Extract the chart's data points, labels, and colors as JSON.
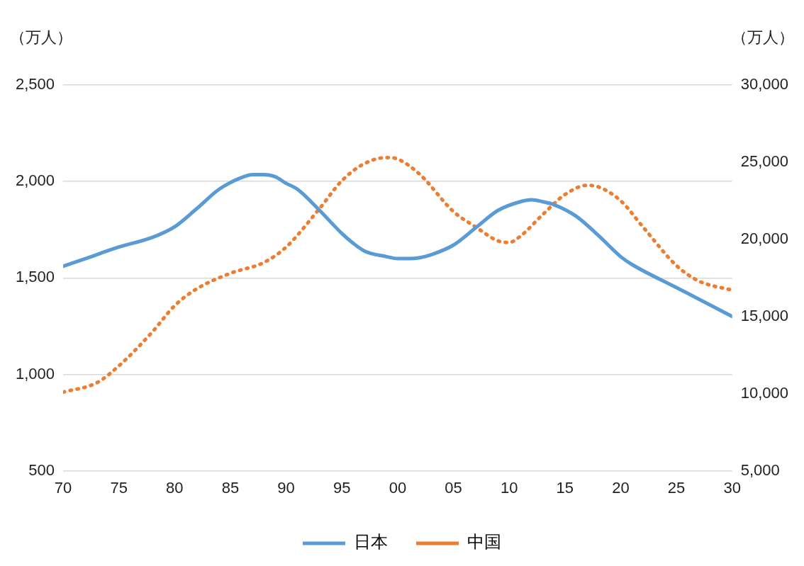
{
  "chart_data": {
    "type": "line",
    "ylabel": "（万人）",
    "y2label": "（万人）",
    "xlim": [
      1970,
      2030
    ],
    "xticks": [
      {
        "value": 1970,
        "label": "70"
      },
      {
        "value": 1975,
        "label": "75"
      },
      {
        "value": 1980,
        "label": "80"
      },
      {
        "value": 1985,
        "label": "85"
      },
      {
        "value": 1990,
        "label": "90"
      },
      {
        "value": 1995,
        "label": "95"
      },
      {
        "value": 2000,
        "label": "00"
      },
      {
        "value": 2005,
        "label": "05"
      },
      {
        "value": 2010,
        "label": "10"
      },
      {
        "value": 2015,
        "label": "15"
      },
      {
        "value": 2020,
        "label": "20"
      },
      {
        "value": 2025,
        "label": "25"
      },
      {
        "value": 2030,
        "label": "30"
      }
    ],
    "ylim": [
      500,
      2500
    ],
    "yticks": [
      {
        "value": 500,
        "label": "500"
      },
      {
        "value": 1000,
        "label": "1,000"
      },
      {
        "value": 1500,
        "label": "1,500"
      },
      {
        "value": 2000,
        "label": "2,000"
      },
      {
        "value": 2500,
        "label": "2,500"
      }
    ],
    "y2lim": [
      5000,
      30000
    ],
    "y2ticks": [
      {
        "value": 5000,
        "label": "5,000"
      },
      {
        "value": 10000,
        "label": "10,000"
      },
      {
        "value": 15000,
        "label": "15,000"
      },
      {
        "value": 20000,
        "label": "20,000"
      },
      {
        "value": 25000,
        "label": "25,000"
      },
      {
        "value": 30000,
        "label": "30,000"
      }
    ],
    "grid": "y",
    "legend": "bottom",
    "marker": "none",
    "series": [
      {
        "name": "日本",
        "color": "#5b9bd5",
        "line_style": "solid",
        "x": [
          1970,
          1972,
          1975,
          1978,
          1980,
          1982,
          1984,
          1986,
          1987,
          1988,
          1989,
          1990,
          1991,
          1993,
          1995,
          1996,
          1997,
          1999,
          2000,
          2001,
          2002,
          2003,
          2005,
          2007,
          2009,
          2011,
          2012,
          2013,
          2014,
          2016,
          2018,
          2020,
          2021,
          2025,
          2027,
          2030
        ],
        "values": [
          1560,
          1600,
          1660,
          1710,
          1765,
          1860,
          1960,
          2020,
          2035,
          2035,
          2025,
          1990,
          1960,
          1850,
          1730,
          1680,
          1640,
          1610,
          1600,
          1600,
          1605,
          1620,
          1670,
          1760,
          1850,
          1895,
          1905,
          1895,
          1880,
          1820,
          1720,
          1610,
          1570,
          1450,
          1390,
          1300
        ]
      },
      {
        "name": "中国",
        "color": "#ed7d31",
        "line_style": "dotted",
        "axis": "y2",
        "x": [
          1970,
          1973,
          1975,
          1978,
          1980,
          1982,
          1985,
          1988,
          1990,
          1993,
          1995,
          1997,
          1999,
          2000,
          2002,
          2005,
          2007,
          2009,
          2010,
          2011,
          2013,
          2015,
          2017,
          2018,
          2020,
          2022,
          2025,
          2027,
          2030
        ],
        "values": [
          10100,
          10700,
          11800,
          14000,
          15700,
          16800,
          17800,
          18500,
          19500,
          22000,
          23800,
          24900,
          25300,
          25200,
          24200,
          21800,
          20800,
          19900,
          19800,
          20200,
          21600,
          22900,
          23500,
          23400,
          22500,
          20800,
          18300,
          17300,
          16700
        ]
      }
    ]
  }
}
